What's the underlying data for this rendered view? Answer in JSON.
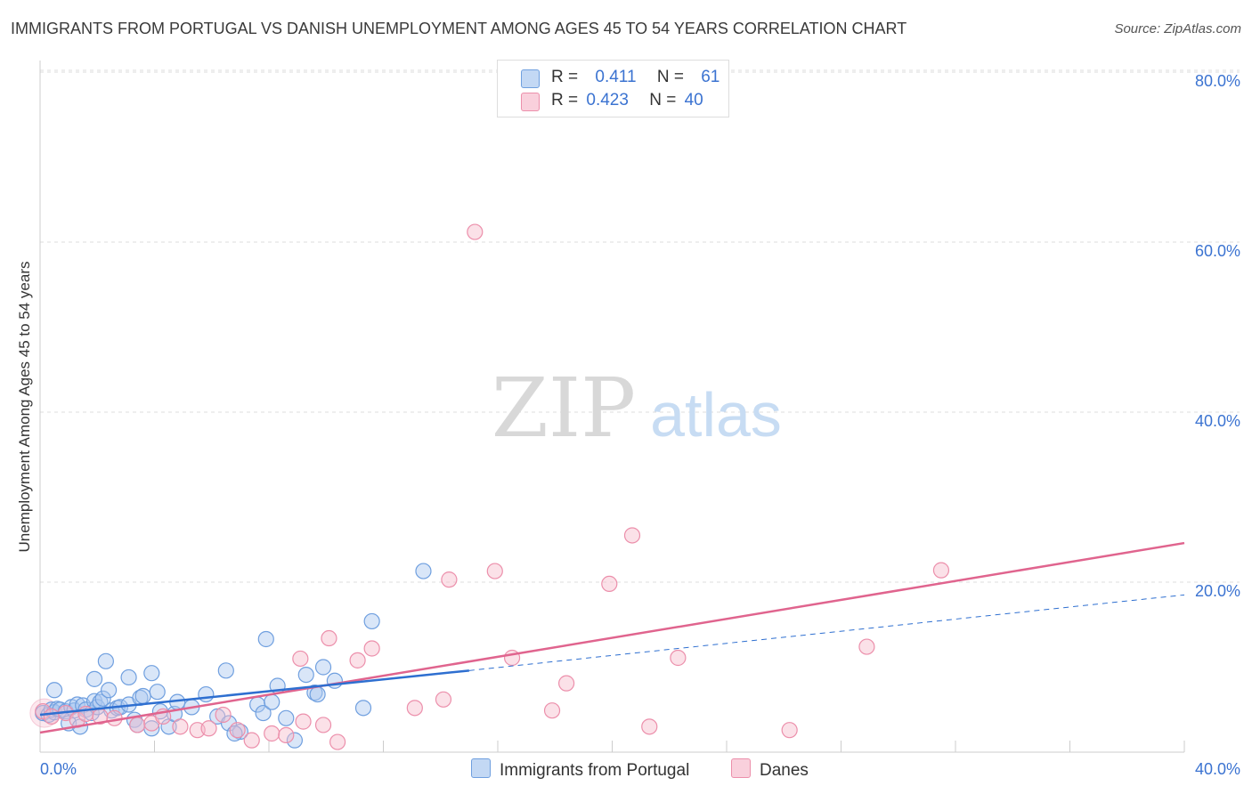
{
  "title": "IMMIGRANTS FROM PORTUGAL VS DANISH UNEMPLOYMENT AMONG AGES 45 TO 54 YEARS CORRELATION CHART",
  "source": "Source: ZipAtlas.com",
  "watermark": {
    "zip": "ZIP",
    "atlas": "atlas"
  },
  "colors": {
    "blue_fill": "#aac8f0",
    "blue_stroke": "#6f9fdf",
    "blue_line": "#2e6fd0",
    "pink_fill": "#f7bccd",
    "pink_stroke": "#ec8fab",
    "pink_line": "#e0648e",
    "axis_text": "#3b73d1",
    "grid": "#dcdcdc"
  },
  "legend": {
    "series1": {
      "r_label": "R =",
      "r_value": "0.411",
      "n_label": "N =",
      "n_value": "61"
    },
    "series2": {
      "r_label": "R =",
      "r_value": "0.423",
      "n_label": "N =",
      "n_value": "40"
    }
  },
  "chart_data": {
    "type": "scatter",
    "title": "IMMIGRANTS FROM PORTUGAL VS DANISH UNEMPLOYMENT AMONG AGES 45 TO 54 YEARS CORRELATION CHART",
    "xlabel": "",
    "ylabel": "Unemployment Among Ages 45 to 54 years",
    "xlim": [
      0,
      40
    ],
    "ylim": [
      0,
      84
    ],
    "x_tick_labels": [
      "0.0%",
      "40.0%"
    ],
    "y_ticks": [
      20,
      40,
      60,
      80
    ],
    "y_tick_labels": [
      "20.0%",
      "40.0%",
      "60.0%",
      "80.0%"
    ],
    "grid": true,
    "legend_position": "bottom",
    "series": [
      {
        "name": "Immigrants from Portugal",
        "color": "blue",
        "points": [
          [
            0.1,
            4.6
          ],
          [
            0.3,
            4.4
          ],
          [
            0.4,
            5.0
          ],
          [
            0.5,
            4.7
          ],
          [
            0.6,
            5.1
          ],
          [
            0.7,
            5.0
          ],
          [
            0.9,
            4.8
          ],
          [
            1.0,
            3.4
          ],
          [
            1.1,
            5.3
          ],
          [
            1.2,
            4.9
          ],
          [
            1.3,
            5.6
          ],
          [
            1.4,
            3.0
          ],
          [
            1.5,
            5.5
          ],
          [
            1.6,
            5.0
          ],
          [
            1.8,
            4.6
          ],
          [
            1.9,
            6.0
          ],
          [
            2.0,
            5.3
          ],
          [
            2.1,
            5.9
          ],
          [
            2.2,
            6.3
          ],
          [
            2.4,
            7.3
          ],
          [
            2.5,
            4.9
          ],
          [
            2.7,
            5.2
          ],
          [
            2.8,
            5.3
          ],
          [
            3.1,
            5.6
          ],
          [
            3.3,
            3.8
          ],
          [
            3.5,
            6.4
          ],
          [
            3.6,
            6.6
          ],
          [
            3.9,
            2.8
          ],
          [
            4.1,
            7.1
          ],
          [
            4.2,
            4.8
          ],
          [
            4.5,
            3.0
          ],
          [
            4.7,
            4.5
          ],
          [
            4.8,
            5.9
          ],
          [
            5.3,
            5.3
          ],
          [
            5.8,
            6.8
          ],
          [
            6.2,
            4.2
          ],
          [
            6.6,
            3.4
          ],
          [
            7.0,
            2.4
          ],
          [
            7.6,
            5.6
          ],
          [
            7.8,
            4.6
          ],
          [
            8.1,
            5.9
          ],
          [
            8.6,
            4.0
          ],
          [
            8.9,
            1.4
          ],
          [
            9.3,
            9.1
          ],
          [
            9.6,
            7.0
          ],
          [
            9.9,
            10.0
          ],
          [
            10.3,
            8.4
          ],
          [
            11.3,
            5.2
          ],
          [
            0.5,
            7.3
          ],
          [
            1.9,
            8.6
          ],
          [
            2.3,
            10.7
          ],
          [
            3.1,
            8.8
          ],
          [
            3.9,
            9.3
          ],
          [
            6.5,
            9.6
          ],
          [
            8.3,
            7.8
          ],
          [
            9.7,
            6.8
          ],
          [
            7.9,
            13.3
          ],
          [
            11.6,
            15.4
          ],
          [
            13.4,
            21.3
          ],
          [
            6.8,
            2.2
          ],
          [
            3.4,
            3.2
          ]
        ]
      },
      {
        "name": "Danes",
        "color": "pink",
        "points": [
          [
            0.1,
            4.8
          ],
          [
            0.4,
            4.2
          ],
          [
            0.9,
            4.6
          ],
          [
            1.3,
            3.8
          ],
          [
            1.6,
            4.5
          ],
          [
            2.1,
            4.2
          ],
          [
            2.6,
            4.0
          ],
          [
            3.4,
            3.2
          ],
          [
            3.9,
            3.4
          ],
          [
            4.3,
            4.2
          ],
          [
            4.9,
            3.0
          ],
          [
            5.5,
            2.6
          ],
          [
            5.9,
            2.8
          ],
          [
            6.4,
            4.4
          ],
          [
            6.9,
            2.6
          ],
          [
            7.4,
            1.4
          ],
          [
            8.1,
            2.2
          ],
          [
            8.6,
            2.0
          ],
          [
            9.2,
            3.6
          ],
          [
            9.9,
            3.2
          ],
          [
            10.4,
            1.2
          ],
          [
            11.1,
            10.8
          ],
          [
            11.6,
            12.2
          ],
          [
            10.1,
            13.4
          ],
          [
            9.1,
            11.0
          ],
          [
            13.1,
            5.2
          ],
          [
            14.1,
            6.2
          ],
          [
            14.3,
            20.3
          ],
          [
            15.2,
            61.2
          ],
          [
            15.9,
            21.3
          ],
          [
            16.5,
            11.1
          ],
          [
            17.9,
            4.9
          ],
          [
            18.4,
            8.1
          ],
          [
            19.9,
            19.8
          ],
          [
            20.7,
            25.5
          ],
          [
            21.3,
            3.0
          ],
          [
            22.3,
            11.1
          ],
          [
            26.2,
            2.6
          ],
          [
            28.9,
            12.4
          ],
          [
            31.5,
            21.4
          ]
        ]
      }
    ],
    "trend_lines": [
      {
        "series": "Immigrants from Portugal",
        "x_start": 0,
        "y_start": 4.4,
        "x_end": 15.0,
        "y_end": 9.6,
        "dashed_to_x": 40,
        "dashed_to_y": 18.5
      },
      {
        "series": "Danes",
        "x_start": 0,
        "y_start": 2.3,
        "x_end": 40,
        "y_end": 24.6
      }
    ]
  }
}
